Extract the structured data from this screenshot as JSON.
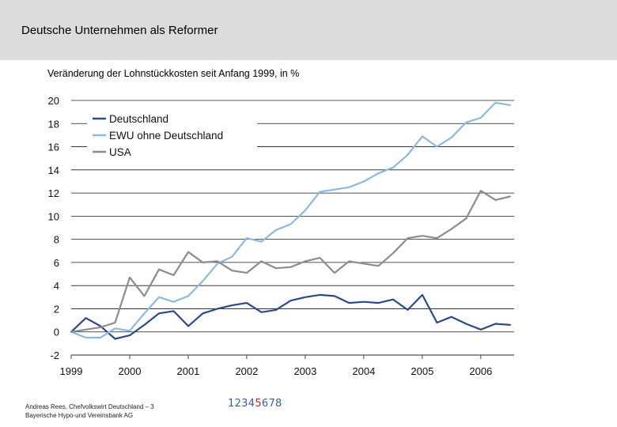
{
  "slide": {
    "title": "Deutsche Unternehmen als Reformer",
    "footer_line1": "Andreas Rees, Chefvolkswirt Deutschland – 3",
    "footer_line2": "Bayerische Hypo-und Vereinsbank AG",
    "page_numbers": [
      "1",
      "2",
      "3",
      "4",
      "5",
      "6",
      "7",
      "8"
    ],
    "current_page": "5"
  },
  "chart_data": {
    "type": "line",
    "title": "Veränderung der Lohnstückkosten seit Anfang 1999, in %",
    "xlabel": "",
    "ylabel": "",
    "ylim": [
      -2,
      20
    ],
    "yticks": [
      -2,
      0,
      2,
      4,
      6,
      8,
      10,
      12,
      14,
      16,
      18,
      20
    ],
    "xlim": [
      1999.0,
      2006.57
    ],
    "xticks": [
      "1999",
      "2000",
      "2001",
      "2002",
      "2003",
      "2004",
      "2005",
      "2006"
    ],
    "grid": true,
    "legend_position": "top-left",
    "x": [
      1999.0,
      1999.25,
      1999.5,
      1999.75,
      2000.0,
      2000.25,
      2000.5,
      2000.75,
      2001.0,
      2001.25,
      2001.5,
      2001.75,
      2002.0,
      2002.25,
      2002.5,
      2002.75,
      2003.0,
      2003.25,
      2003.5,
      2003.75,
      2004.0,
      2004.25,
      2004.5,
      2004.75,
      2005.0,
      2005.25,
      2005.5,
      2005.75,
      2006.0,
      2006.25,
      2006.5
    ],
    "series": [
      {
        "name": "Deutschland",
        "color": "#2b4a8b",
        "values": [
          0.0,
          1.2,
          0.5,
          -0.6,
          -0.3,
          0.6,
          1.6,
          1.8,
          0.5,
          1.6,
          2.0,
          2.3,
          2.5,
          1.7,
          1.9,
          2.7,
          3.0,
          3.2,
          3.1,
          2.5,
          2.6,
          2.5,
          2.8,
          1.9,
          3.2,
          0.8,
          1.3,
          0.7,
          0.2,
          0.7,
          0.6
        ]
      },
      {
        "name": "EWU ohne Deutschland",
        "color": "#8fb8e0",
        "values": [
          0.0,
          -0.5,
          -0.5,
          0.3,
          0.1,
          1.6,
          3.0,
          2.6,
          3.1,
          4.4,
          5.9,
          6.5,
          8.1,
          7.8,
          8.8,
          9.3,
          10.5,
          12.1,
          12.3,
          12.5,
          13.0,
          13.7,
          14.2,
          15.3,
          16.9,
          16.0,
          16.8,
          18.1,
          18.5,
          19.8,
          19.6
        ]
      },
      {
        "name": "USA",
        "color": "#8c8c8c",
        "values": [
          0.0,
          0.2,
          0.4,
          0.8,
          4.7,
          3.1,
          5.4,
          4.9,
          6.9,
          6.0,
          6.1,
          5.3,
          5.1,
          6.1,
          5.5,
          5.6,
          6.1,
          6.4,
          5.1,
          6.1,
          5.9,
          5.7,
          6.8,
          8.1,
          8.3,
          8.1,
          8.9,
          9.8,
          12.2,
          11.4,
          11.7
        ]
      }
    ]
  }
}
